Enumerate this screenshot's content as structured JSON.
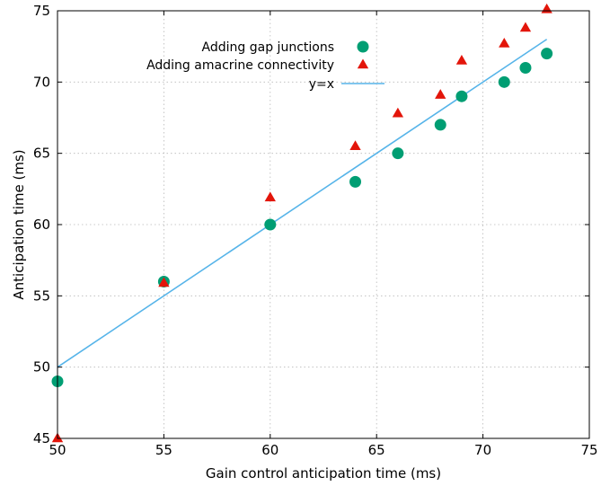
{
  "chart_data": {
    "type": "scatter",
    "xlabel": "Gain control anticipation time (ms)",
    "ylabel": "Anticipation time (ms)",
    "xlim": [
      50,
      75
    ],
    "ylim": [
      45,
      75
    ],
    "xticks": [
      50,
      55,
      60,
      65,
      70,
      75
    ],
    "yticks": [
      45,
      50,
      55,
      60,
      65,
      70,
      75
    ],
    "grid": true,
    "legend_position": "top-left",
    "series": [
      {
        "name": "Adding gap junctions",
        "marker": "circle",
        "color": "#009e73",
        "points": [
          [
            50,
            49
          ],
          [
            55,
            56
          ],
          [
            60,
            60
          ],
          [
            64,
            63
          ],
          [
            66,
            65
          ],
          [
            68,
            67
          ],
          [
            69,
            69
          ],
          [
            71,
            70
          ],
          [
            72,
            71
          ],
          [
            73,
            72
          ]
        ]
      },
      {
        "name": "Adding amacrine connectivity",
        "marker": "triangle",
        "color": "#e3150a",
        "points": [
          [
            50,
            45
          ],
          [
            55,
            55.9
          ],
          [
            60,
            61.9
          ],
          [
            64,
            65.5
          ],
          [
            66,
            67.8
          ],
          [
            68,
            69.1
          ],
          [
            69,
            71.5
          ],
          [
            71,
            72.7
          ],
          [
            72,
            73.8
          ],
          [
            73,
            75.1
          ]
        ]
      },
      {
        "name": "y=x",
        "marker": "line",
        "color": "#56b4e9",
        "points": [
          [
            50,
            50
          ],
          [
            73,
            73
          ]
        ]
      }
    ]
  }
}
